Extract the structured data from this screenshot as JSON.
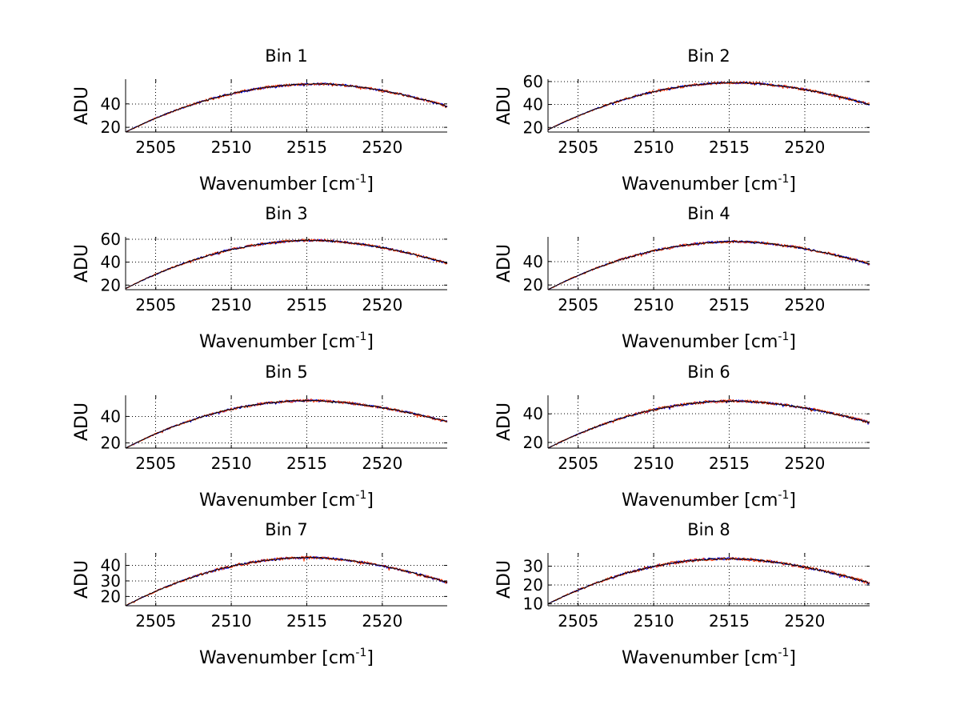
{
  "chart_data": [
    {
      "type": "line",
      "title": "Bin 1",
      "xlabel": "Wavenumber [cm",
      "xlabel_sup": "-1",
      "xlabel_end": "]",
      "ylabel": "ADU",
      "xlim": [
        2503,
        2524.3
      ],
      "ylim": [
        16,
        61
      ],
      "xticks": [
        2505,
        2510,
        2515,
        2520
      ],
      "yticks": [
        20,
        40
      ],
      "grid": true,
      "shape": {
        "start": 16,
        "peak": 57,
        "peak_x": 2515.8,
        "end": 38
      },
      "series": [
        {
          "color": "#0000ff",
          "noise": 1.0
        },
        {
          "color": "#ff3300",
          "noise": 1.2
        },
        {
          "color": "#000000",
          "noise": 0.5
        }
      ]
    },
    {
      "type": "line",
      "title": "Bin 2",
      "xlabel": "Wavenumber [cm",
      "xlabel_sup": "-1",
      "xlabel_end": "]",
      "ylabel": "ADU",
      "xlim": [
        2503,
        2524.3
      ],
      "ylim": [
        16,
        62
      ],
      "xticks": [
        2505,
        2510,
        2515,
        2520
      ],
      "yticks": [
        20,
        40,
        60
      ],
      "grid": true,
      "shape": {
        "start": 18,
        "peak": 59,
        "peak_x": 2515.5,
        "end": 40
      },
      "series": [
        {
          "color": "#0000ff",
          "noise": 1.0
        },
        {
          "color": "#ff3300",
          "noise": 1.3
        },
        {
          "color": "#000000",
          "noise": 0.5
        }
      ]
    },
    {
      "type": "line",
      "title": "Bin 3",
      "xlabel": "Wavenumber [cm",
      "xlabel_sup": "-1",
      "xlabel_end": "]",
      "ylabel": "ADU",
      "xlim": [
        2503,
        2524.3
      ],
      "ylim": [
        16,
        62
      ],
      "xticks": [
        2505,
        2510,
        2515,
        2520
      ],
      "yticks": [
        20,
        40,
        60
      ],
      "grid": true,
      "shape": {
        "start": 17,
        "peak": 59,
        "peak_x": 2515.5,
        "end": 39
      },
      "series": [
        {
          "color": "#0000ff",
          "noise": 1.0
        },
        {
          "color": "#ff3300",
          "noise": 1.2
        },
        {
          "color": "#000000",
          "noise": 0.5
        }
      ]
    },
    {
      "type": "line",
      "title": "Bin 4",
      "xlabel": "Wavenumber [cm",
      "xlabel_sup": "-1",
      "xlabel_end": "]",
      "ylabel": "ADU",
      "xlim": [
        2503,
        2524.3
      ],
      "ylim": [
        16,
        61
      ],
      "xticks": [
        2505,
        2510,
        2515,
        2520
      ],
      "yticks": [
        20,
        40
      ],
      "grid": true,
      "shape": {
        "start": 16,
        "peak": 57,
        "peak_x": 2515.5,
        "end": 38
      },
      "series": [
        {
          "color": "#0000ff",
          "noise": 1.0
        },
        {
          "color": "#ff3300",
          "noise": 1.2
        },
        {
          "color": "#000000",
          "noise": 0.5
        }
      ]
    },
    {
      "type": "line",
      "title": "Bin 5",
      "xlabel": "Wavenumber [cm",
      "xlabel_sup": "-1",
      "xlabel_end": "]",
      "ylabel": "ADU",
      "xlim": [
        2503,
        2524.3
      ],
      "ylim": [
        16,
        56
      ],
      "xticks": [
        2505,
        2510,
        2515,
        2520
      ],
      "yticks": [
        20,
        40
      ],
      "grid": true,
      "shape": {
        "start": 16,
        "peak": 52,
        "peak_x": 2515.2,
        "end": 36
      },
      "series": [
        {
          "color": "#0000ff",
          "noise": 0.9
        },
        {
          "color": "#ff3300",
          "noise": 1.1
        },
        {
          "color": "#000000",
          "noise": 0.5
        }
      ]
    },
    {
      "type": "line",
      "title": "Bin 6",
      "xlabel": "Wavenumber [cm",
      "xlabel_sup": "-1",
      "xlabel_end": "]",
      "ylabel": "ADU",
      "xlim": [
        2503,
        2524.3
      ],
      "ylim": [
        16,
        53
      ],
      "xticks": [
        2505,
        2510,
        2515,
        2520
      ],
      "yticks": [
        20,
        40
      ],
      "grid": true,
      "shape": {
        "start": 16,
        "peak": 49,
        "peak_x": 2515.3,
        "end": 34
      },
      "series": [
        {
          "color": "#0000ff",
          "noise": 0.9
        },
        {
          "color": "#ff3300",
          "noise": 1.1
        },
        {
          "color": "#000000",
          "noise": 0.5
        }
      ]
    },
    {
      "type": "line",
      "title": "Bin 7",
      "xlabel": "Wavenumber [cm",
      "xlabel_sup": "-1",
      "xlabel_end": "]",
      "ylabel": "ADU",
      "xlim": [
        2503,
        2524.3
      ],
      "ylim": [
        14,
        48
      ],
      "xticks": [
        2505,
        2510,
        2515,
        2520
      ],
      "yticks": [
        20,
        30,
        40
      ],
      "grid": true,
      "shape": {
        "start": 14,
        "peak": 45,
        "peak_x": 2515.2,
        "end": 29
      },
      "series": [
        {
          "color": "#0000ff",
          "noise": 0.8
        },
        {
          "color": "#ff3300",
          "noise": 1.0
        },
        {
          "color": "#000000",
          "noise": 0.4
        }
      ]
    },
    {
      "type": "line",
      "title": "Bin 8",
      "xlabel": "Wavenumber [cm",
      "xlabel_sup": "-1",
      "xlabel_end": "]",
      "ylabel": "ADU",
      "xlim": [
        2503,
        2524.3
      ],
      "ylim": [
        9,
        37
      ],
      "xticks": [
        2505,
        2510,
        2515,
        2520
      ],
      "yticks": [
        10,
        20,
        30
      ],
      "grid": true,
      "shape": {
        "start": 10,
        "peak": 34,
        "peak_x": 2515.0,
        "end": 21
      },
      "series": [
        {
          "color": "#0000ff",
          "noise": 0.7
        },
        {
          "color": "#ff3300",
          "noise": 0.9
        },
        {
          "color": "#000000",
          "noise": 0.4
        }
      ]
    }
  ]
}
